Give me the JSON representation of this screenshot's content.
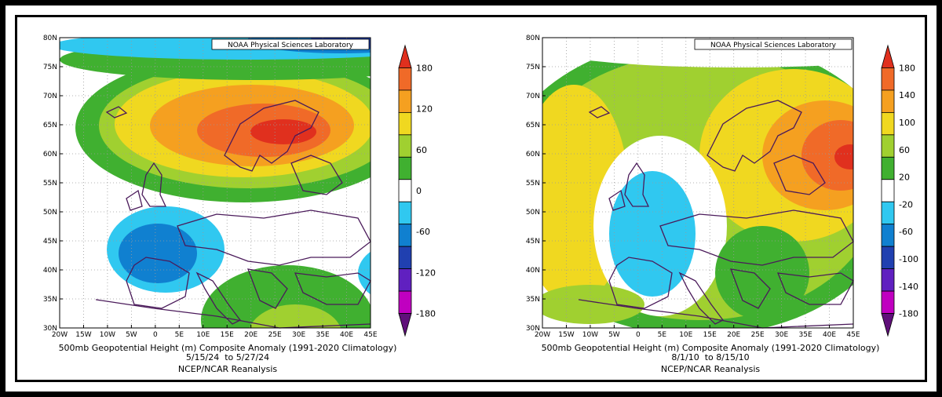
{
  "panels": [
    {
      "id": "left",
      "lab_label": "NOAA Physical Sciences Laboratory",
      "caption_line1": "500mb Geopotential Height (m) Composite Anomaly (1991-2020 Climatology)",
      "caption_line2": "5/15/24  to 5/27/24",
      "caption_line3": "NCEP/NCAR Reanalysis",
      "lat_ticks": [
        "80N",
        "75N",
        "70N",
        "65N",
        "60N",
        "55N",
        "50N",
        "45N",
        "40N",
        "35N",
        "30N"
      ],
      "lon_ticks": [
        "20W",
        "15W",
        "10W",
        "5W",
        "0",
        "5E",
        "10E",
        "15E",
        "20E",
        "25E",
        "30E",
        "35E",
        "40E",
        "45E"
      ],
      "colorbar": {
        "labels": [
          "180",
          "120",
          "60",
          "0",
          "-60",
          "-120",
          "-180"
        ],
        "colors": [
          "#e0301e",
          "#f06a28",
          "#f5a020",
          "#f0d820",
          "#a0d030",
          "#40b030",
          "#ffffff",
          "#30c8f0",
          "#1080d0",
          "#2040b0",
          "#6020c0",
          "#c000c0",
          "#60107a"
        ]
      }
    },
    {
      "id": "right",
      "lab_label": "NOAA Physical Sciences Laboratory",
      "caption_line1": "500mb Geopotential Height (m) Composite Anomaly (1991-2020 Climatology)",
      "caption_line2": "8/1/10  to 8/15/10",
      "caption_line3": "NCEP/NCAR Reanalysis",
      "lat_ticks": [
        "80N",
        "75N",
        "70N",
        "65N",
        "60N",
        "55N",
        "50N",
        "45N",
        "40N",
        "35N",
        "30N"
      ],
      "lon_ticks": [
        "20W",
        "15W",
        "10W",
        "5W",
        "0",
        "5E",
        "10E",
        "15E",
        "20E",
        "25E",
        "30E",
        "35E",
        "40E",
        "45E"
      ],
      "colorbar": {
        "labels": [
          "180",
          "140",
          "100",
          "60",
          "20",
          "-20",
          "-60",
          "-100",
          "-140",
          "-180"
        ],
        "colors": [
          "#e0301e",
          "#f06a28",
          "#f5a020",
          "#f0d820",
          "#a0d030",
          "#40b030",
          "#ffffff",
          "#30c8f0",
          "#1080d0",
          "#2040b0",
          "#6020c0",
          "#c000c0",
          "#60107a"
        ]
      }
    }
  ]
}
